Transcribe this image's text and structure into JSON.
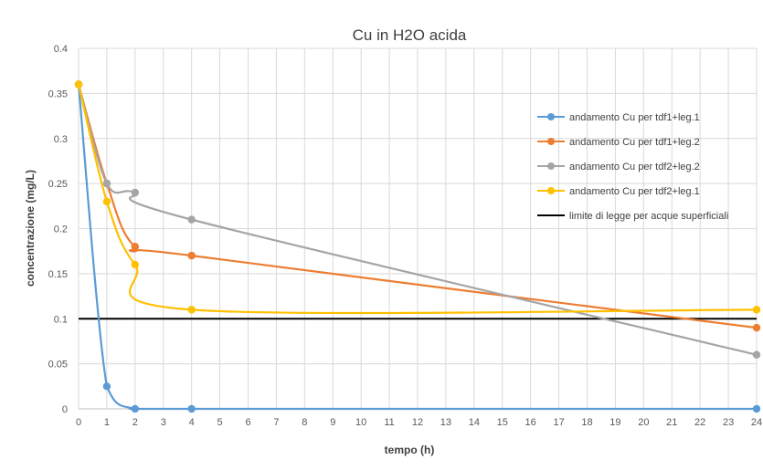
{
  "chart_data": {
    "type": "line",
    "title": "Cu in H2O acida",
    "xlabel": "tempo (h)",
    "ylabel": "concentrazione (mg/L)",
    "xlim": [
      0,
      24
    ],
    "ylim": [
      0,
      0.4
    ],
    "x_ticks": [
      "0",
      "1",
      "2",
      "3",
      "4",
      "5",
      "6",
      "7",
      "8",
      "9",
      "10",
      "11",
      "12",
      "13",
      "14",
      "15",
      "16",
      "17",
      "18",
      "19",
      "20",
      "21",
      "22",
      "23",
      "24"
    ],
    "y_ticks": [
      "0",
      "0.05",
      "0.1",
      "0.15",
      "0.2",
      "0.25",
      "0.3",
      "0.35",
      "0.4"
    ],
    "grid": true,
    "legend_position": "right",
    "series": [
      {
        "name": "andamento Cu per tdf1+leg.1",
        "color": "#5B9BD5",
        "x": [
          0,
          1,
          2,
          4,
          24
        ],
        "y": [
          0.36,
          0.025,
          0,
          0,
          0
        ]
      },
      {
        "name": "andamento Cu per tdf1+leg.2",
        "color": "#ED7D31",
        "x": [
          0,
          1,
          2,
          4,
          24
        ],
        "y": [
          0.36,
          0.25,
          0.18,
          0.17,
          0.09
        ]
      },
      {
        "name": "andamento Cu per tdf2+leg.2",
        "color": "#A5A5A5",
        "x": [
          0,
          1,
          2,
          4,
          24
        ],
        "y": [
          0.36,
          0.25,
          0.24,
          0.21,
          0.06
        ]
      },
      {
        "name": "andamento Cu per tdf2+leg.1",
        "color": "#FFC000",
        "x": [
          0,
          1,
          2,
          4,
          24
        ],
        "y": [
          0.36,
          0.23,
          0.16,
          0.11,
          0.11
        ]
      },
      {
        "name": "limite di legge per acque superficiali",
        "color": "#000000",
        "x": [
          0,
          24
        ],
        "y": [
          0.1,
          0.1
        ],
        "markers": false
      }
    ]
  }
}
